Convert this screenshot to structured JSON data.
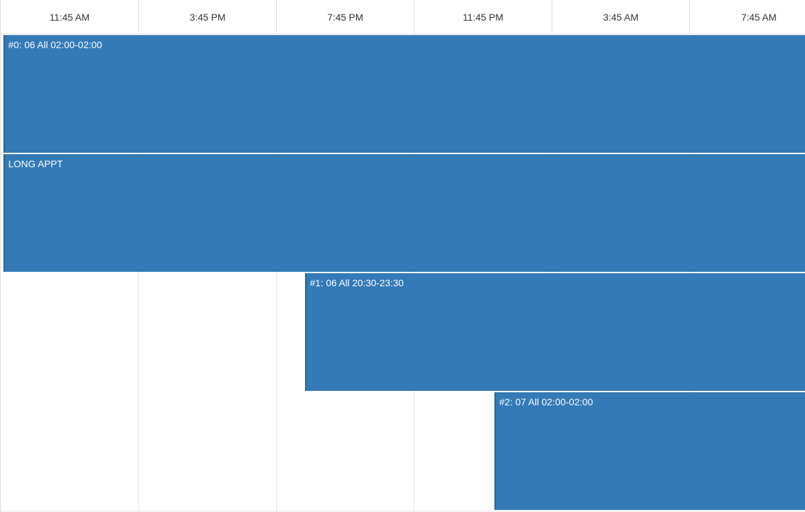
{
  "timeline": {
    "header_labels": [
      "11:45 AM",
      "3:45 PM",
      "7:45 PM",
      "11:45 PM",
      "3:45 AM",
      "7:45 AM"
    ]
  },
  "events": [
    {
      "title": "#0: 06 All 02:00-02:00",
      "color": "#337ab7"
    },
    {
      "title": "LONG APPT",
      "color": "#337ab7"
    },
    {
      "title": "#1: 06 All 20:30-23:30",
      "color": "#337ab7"
    },
    {
      "title": "#2: 07 All 02:00-02:00",
      "color": "#337ab7"
    }
  ]
}
